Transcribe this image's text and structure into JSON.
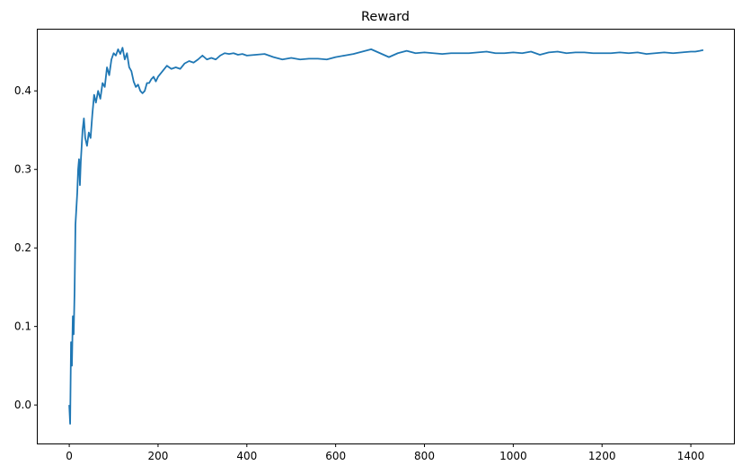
{
  "chart_data": {
    "type": "line",
    "title": "Reward",
    "xlabel": "",
    "ylabel": "",
    "xlim": [
      -71,
      1497
    ],
    "ylim": [
      -0.049,
      0.478
    ],
    "xticks": [
      0,
      200,
      400,
      600,
      800,
      1000,
      1200,
      1400
    ],
    "xtick_labels": [
      "0",
      "200",
      "400",
      "600",
      "800",
      "1000",
      "1200",
      "1400"
    ],
    "yticks": [
      0.0,
      0.1,
      0.2,
      0.3,
      0.4
    ],
    "ytick_labels": [
      "0.0",
      "0.1",
      "0.2",
      "0.3",
      "0.4"
    ],
    "grid": false,
    "legend": "none",
    "series": [
      {
        "color": "#1f77b4",
        "x": [
          0,
          2,
          4,
          6,
          8,
          10,
          12,
          14,
          16,
          18,
          20,
          22,
          24,
          26,
          28,
          30,
          33,
          36,
          40,
          44,
          48,
          52,
          56,
          60,
          65,
          70,
          75,
          80,
          85,
          90,
          95,
          100,
          105,
          110,
          115,
          120,
          125,
          130,
          135,
          140,
          145,
          150,
          155,
          160,
          165,
          170,
          175,
          180,
          185,
          190,
          195,
          200,
          210,
          220,
          230,
          240,
          250,
          260,
          270,
          280,
          290,
          300,
          310,
          320,
          330,
          340,
          350,
          360,
          370,
          380,
          390,
          400,
          420,
          440,
          460,
          480,
          500,
          520,
          540,
          560,
          580,
          600,
          620,
          640,
          660,
          680,
          700,
          720,
          740,
          760,
          780,
          800,
          820,
          840,
          860,
          880,
          900,
          920,
          940,
          960,
          980,
          1000,
          1020,
          1040,
          1060,
          1080,
          1100,
          1120,
          1140,
          1160,
          1180,
          1200,
          1220,
          1240,
          1260,
          1280,
          1300,
          1320,
          1340,
          1360,
          1380,
          1400,
          1410,
          1420,
          1428
        ],
        "y": [
          0.0,
          -0.024,
          0.08,
          0.05,
          0.113,
          0.09,
          0.145,
          0.23,
          0.25,
          0.27,
          0.3,
          0.313,
          0.28,
          0.31,
          0.33,
          0.35,
          0.365,
          0.34,
          0.33,
          0.347,
          0.34,
          0.37,
          0.395,
          0.385,
          0.4,
          0.39,
          0.41,
          0.405,
          0.43,
          0.42,
          0.44,
          0.448,
          0.445,
          0.453,
          0.447,
          0.455,
          0.44,
          0.448,
          0.43,
          0.425,
          0.412,
          0.405,
          0.408,
          0.4,
          0.397,
          0.4,
          0.41,
          0.41,
          0.415,
          0.418,
          0.412,
          0.418,
          0.425,
          0.432,
          0.428,
          0.43,
          0.428,
          0.435,
          0.438,
          0.436,
          0.44,
          0.445,
          0.44,
          0.442,
          0.44,
          0.445,
          0.448,
          0.447,
          0.448,
          0.446,
          0.447,
          0.445,
          0.446,
          0.447,
          0.443,
          0.44,
          0.442,
          0.44,
          0.441,
          0.441,
          0.44,
          0.443,
          0.445,
          0.447,
          0.45,
          0.453,
          0.448,
          0.443,
          0.448,
          0.451,
          0.448,
          0.449,
          0.448,
          0.447,
          0.448,
          0.448,
          0.448,
          0.449,
          0.45,
          0.448,
          0.448,
          0.449,
          0.448,
          0.45,
          0.446,
          0.449,
          0.45,
          0.448,
          0.449,
          0.449,
          0.448,
          0.448,
          0.448,
          0.449,
          0.448,
          0.449,
          0.447,
          0.448,
          0.449,
          0.448,
          0.449,
          0.45,
          0.45,
          0.451,
          0.452
        ]
      }
    ]
  }
}
